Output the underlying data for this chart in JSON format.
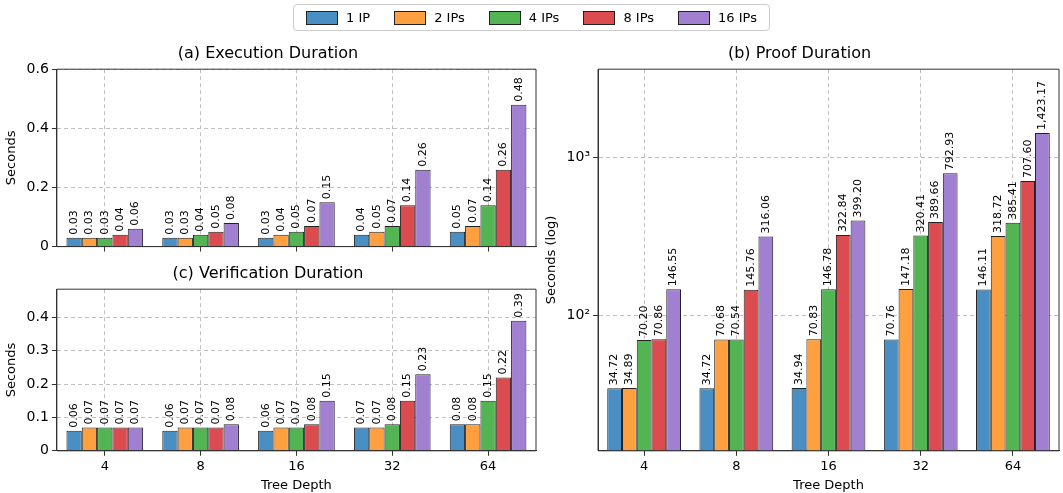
{
  "chart_data": [
    {
      "type": "bar",
      "title": "(a) Execution Duration",
      "ylabel": "Seconds",
      "categories": [
        "4",
        "8",
        "16",
        "32",
        "64"
      ],
      "ylim": [
        0,
        0.6
      ],
      "yticks": [
        0,
        0.2,
        0.4,
        0.6
      ],
      "grid": true,
      "legend": "top",
      "tick_labels": "y",
      "data_labels": true,
      "series": [
        {
          "name": "1 IP",
          "color": "#4a8fc4",
          "values": [
            0.03,
            0.03,
            0.03,
            0.04,
            0.05
          ]
        },
        {
          "name": "2 IPs",
          "color": "#ffa040",
          "values": [
            0.03,
            0.03,
            0.04,
            0.05,
            0.07
          ]
        },
        {
          "name": "4 IPs",
          "color": "#52b452",
          "values": [
            0.03,
            0.04,
            0.05,
            0.07,
            0.14
          ]
        },
        {
          "name": "8 IPs",
          "color": "#dc4b4f",
          "values": [
            0.04,
            0.05,
            0.07,
            0.14,
            0.26
          ]
        },
        {
          "name": "16 IPs",
          "color": "#a17fd1",
          "values": [
            0.06,
            0.08,
            0.15,
            0.26,
            0.48
          ]
        }
      ]
    },
    {
      "type": "bar",
      "title": "(c) Verification Duration",
      "xlabel": "Tree Depth",
      "ylabel": "Seconds",
      "categories": [
        "4",
        "8",
        "16",
        "32",
        "64"
      ],
      "ylim": [
        0,
        0.485
      ],
      "yticks": [
        0,
        0.1,
        0.2,
        0.3,
        0.4
      ],
      "grid": true,
      "data_labels": true,
      "series": [
        {
          "color": "#4a8fc4",
          "values": [
            0.06,
            0.06,
            0.06,
            0.07,
            0.08
          ]
        },
        {
          "color": "#ffa040",
          "values": [
            0.07,
            0.07,
            0.07,
            0.07,
            0.08
          ]
        },
        {
          "color": "#52b452",
          "values": [
            0.07,
            0.07,
            0.07,
            0.08,
            0.15
          ]
        },
        {
          "color": "#dc4b4f",
          "values": [
            0.07,
            0.07,
            0.08,
            0.15,
            0.22
          ]
        },
        {
          "color": "#a17fd1",
          "values": [
            0.07,
            0.08,
            0.15,
            0.23,
            0.39
          ]
        }
      ]
    },
    {
      "type": "bar",
      "title": "(b) Proof Duration",
      "xlabel": "Tree Depth",
      "ylabel": "Seconds (log)",
      "categories": [
        "4",
        "8",
        "16",
        "32",
        "64"
      ],
      "log": true,
      "ylim": [
        14,
        3600
      ],
      "yticks": [
        {
          "value": 100,
          "label": "10²"
        },
        {
          "value": 1000,
          "label": "10³"
        }
      ],
      "grid": true,
      "series": [
        {
          "color": "#4a8fc4",
          "values": [
            34.72,
            34.72,
            34.94,
            70.76,
            146.11
          ],
          "value_labels": [
            "34.72",
            "34.72",
            "34.94",
            "70.76",
            "146.11"
          ]
        },
        {
          "color": "#ffa040",
          "values": [
            34.89,
            70.68,
            70.83,
            147.18,
            318.72
          ],
          "value_labels": [
            "34.89",
            "70.68",
            "70.83",
            "147.18",
            "318.72"
          ]
        },
        {
          "color": "#52b452",
          "values": [
            70.2,
            70.54,
            146.78,
            320.41,
            385.41
          ],
          "value_labels": [
            "70.20",
            "70.54",
            "146.78",
            "320.41",
            "385.41"
          ]
        },
        {
          "color": "#dc4b4f",
          "values": [
            70.86,
            145.76,
            322.84,
            389.66,
            707.6
          ],
          "value_labels": [
            "70.86",
            "145.76",
            "322.84",
            "389.66",
            "707.60"
          ]
        },
        {
          "color": "#a17fd1",
          "values": [
            146.55,
            316.06,
            399.2,
            792.93,
            1423.17
          ],
          "value_labels": [
            "146.55",
            "316.06",
            "399.20",
            "792.93",
            "1,423.17"
          ]
        }
      ]
    }
  ]
}
